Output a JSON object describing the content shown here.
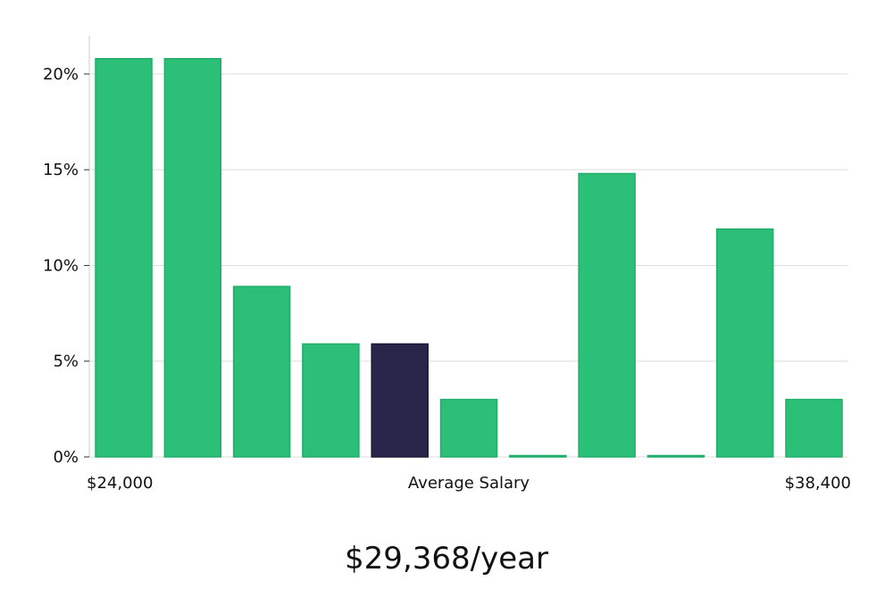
{
  "chart_data": {
    "type": "bar",
    "title": "",
    "xlabel": "Average Salary",
    "ylabel": "",
    "x_min_label": "$24,000",
    "x_max_label": "$38,400",
    "bin_count": 11,
    "values": [
      20.8,
      20.8,
      8.9,
      5.9,
      5.9,
      3.0,
      0.0,
      14.8,
      0.0,
      11.9,
      3.0
    ],
    "highlight_index": 4,
    "ylim": [
      0,
      22
    ],
    "yticks": [
      0,
      5,
      10,
      15,
      20
    ],
    "ytick_labels": [
      "0%",
      "5%",
      "10%",
      "15%",
      "20%"
    ],
    "grid": true,
    "colors": {
      "bar": "#2bbf77",
      "bar_stroke": "#22ad6a",
      "highlight": "#29254a",
      "highlight_stroke": "#1c1937",
      "grid": "#dedede",
      "axis": "#cccccc"
    }
  },
  "summary": {
    "average_salary": "$29,368/year"
  }
}
